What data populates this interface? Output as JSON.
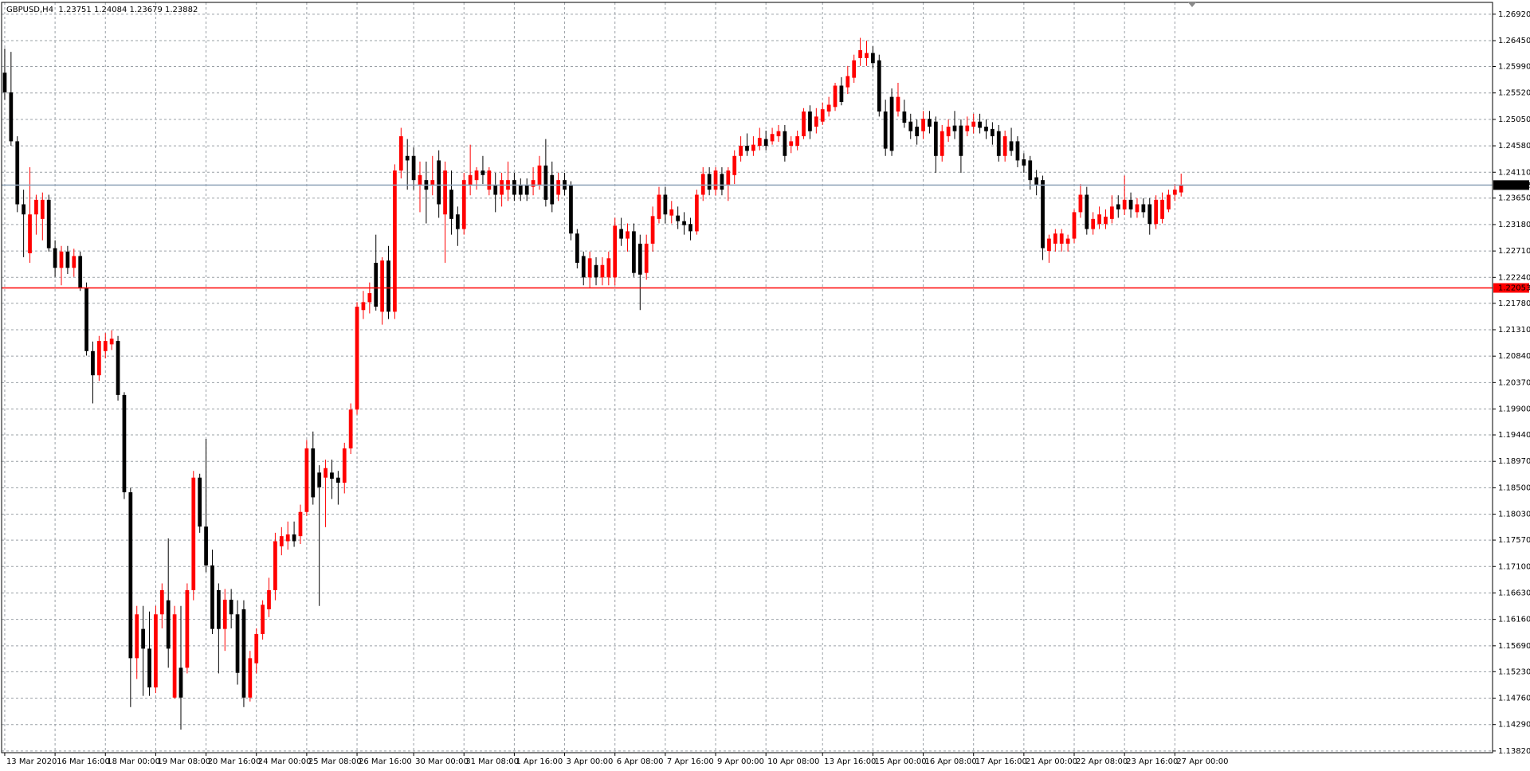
{
  "chart_data": {
    "type": "candlestick",
    "title": "GBPUSD,H4  1.23751 1.24084 1.23679 1.23882",
    "up_color": "#ff0000",
    "down_color": "#000000",
    "grid": true,
    "xlim": [
      -0.5,
      236.5
    ],
    "ylim": [
      1.1379,
      1.2713
    ],
    "xticks": [
      {
        "value": 0,
        "label": "13 Mar 2020"
      },
      {
        "value": 8,
        "label": "16 Mar 16:00"
      },
      {
        "value": 16,
        "label": "18 Mar 00:00"
      },
      {
        "value": 24,
        "label": "19 Mar 08:00"
      },
      {
        "value": 32,
        "label": "20 Mar 16:00"
      },
      {
        "value": 40,
        "label": "24 Mar 00:00"
      },
      {
        "value": 48,
        "label": "25 Mar 08:00"
      },
      {
        "value": 56,
        "label": "26 Mar 16:00"
      },
      {
        "value": 65,
        "label": "30 Mar 00:00"
      },
      {
        "value": 73,
        "label": "31 Mar 08:00"
      },
      {
        "value": 81,
        "label": "1 Apr 16:00"
      },
      {
        "value": 89,
        "label": "3 Apr 00:00"
      },
      {
        "value": 97,
        "label": "6 Apr 08:00"
      },
      {
        "value": 105,
        "label": "7 Apr 16:00"
      },
      {
        "value": 113,
        "label": "9 Apr 00:00"
      },
      {
        "value": 121,
        "label": "10 Apr 08:00"
      },
      {
        "value": 130,
        "label": "13 Apr 16:00"
      },
      {
        "value": 138,
        "label": "15 Apr 00:00"
      },
      {
        "value": 146,
        "label": "16 Apr 08:00"
      },
      {
        "value": 154,
        "label": "17 Apr 16:00"
      },
      {
        "value": 162,
        "label": "21 Apr 00:00"
      },
      {
        "value": 170,
        "label": "22 Apr 08:00"
      },
      {
        "value": 178,
        "label": "23 Apr 16:00"
      },
      {
        "value": 186,
        "label": "27 Apr 00:00"
      }
    ],
    "yticks": [
      {
        "value": 1.2692,
        "label": "1.26920"
      },
      {
        "value": 1.2645,
        "label": "1.26450"
      },
      {
        "value": 1.2599,
        "label": "1.25990"
      },
      {
        "value": 1.2552,
        "label": "1.25520"
      },
      {
        "value": 1.2505,
        "label": "1.25050"
      },
      {
        "value": 1.2458,
        "label": "1.24580"
      },
      {
        "value": 1.2411,
        "label": "1.24110"
      },
      {
        "value": 1.2365,
        "label": "1.23650"
      },
      {
        "value": 1.2318,
        "label": "1.23180"
      },
      {
        "value": 1.2271,
        "label": "1.22710"
      },
      {
        "value": 1.2224,
        "label": "1.22240"
      },
      {
        "value": 1.2178,
        "label": "1.21780"
      },
      {
        "value": 1.2131,
        "label": "1.21310"
      },
      {
        "value": 1.2084,
        "label": "1.20840"
      },
      {
        "value": 1.2037,
        "label": "1.20370"
      },
      {
        "value": 1.199,
        "label": "1.19900"
      },
      {
        "value": 1.1944,
        "label": "1.19440"
      },
      {
        "value": 1.1897,
        "label": "1.18970"
      },
      {
        "value": 1.185,
        "label": "1.18500"
      },
      {
        "value": 1.1803,
        "label": "1.18030"
      },
      {
        "value": 1.1757,
        "label": "1.17570"
      },
      {
        "value": 1.171,
        "label": "1.17100"
      },
      {
        "value": 1.1663,
        "label": "1.16630"
      },
      {
        "value": 1.1616,
        "label": "1.16160"
      },
      {
        "value": 1.1569,
        "label": "1.15690"
      },
      {
        "value": 1.1523,
        "label": "1.15230"
      },
      {
        "value": 1.1476,
        "label": "1.14760"
      },
      {
        "value": 1.1429,
        "label": "1.14290"
      },
      {
        "value": 1.1382,
        "label": "1.13820"
      }
    ],
    "lines": [
      {
        "value": 1.23882,
        "label": "1.23882",
        "color": "#8fa3b8",
        "label_color": "#000000"
      },
      {
        "value": 1.22053,
        "label": "1.22053",
        "color": "#ff0000",
        "label_color": "#ff0000"
      }
    ],
    "ohlc": [
      [
        1.2588,
        1.2631,
        1.254,
        1.2553
      ],
      [
        1.2553,
        1.2625,
        1.2458,
        1.2466
      ],
      [
        1.2466,
        1.2475,
        1.234,
        1.2354
      ],
      [
        1.2354,
        1.238,
        1.226,
        1.2336
      ],
      [
        1.2267,
        1.242,
        1.225,
        1.2336
      ],
      [
        1.2336,
        1.2371,
        1.23,
        1.2362
      ],
      [
        1.2328,
        1.2375,
        1.229,
        1.2362
      ],
      [
        1.2362,
        1.2371,
        1.227,
        1.2276
      ],
      [
        1.2276,
        1.229,
        1.2225,
        1.2241
      ],
      [
        1.2241,
        1.228,
        1.221,
        1.227
      ],
      [
        1.227,
        1.228,
        1.223,
        1.2241
      ],
      [
        1.2241,
        1.2275,
        1.2225,
        1.2262
      ],
      [
        1.2262,
        1.227,
        1.22,
        1.2206
      ],
      [
        1.2206,
        1.2215,
        1.2085,
        1.2093
      ],
      [
        1.2093,
        1.211,
        1.2,
        1.205
      ],
      [
        1.205,
        1.212,
        1.204,
        1.2111
      ],
      [
        1.2093,
        1.2125,
        1.208,
        1.2111
      ],
      [
        1.2105,
        1.213,
        1.2095,
        1.2115
      ],
      [
        1.2111,
        1.212,
        1.2005,
        1.2015
      ],
      [
        1.2015,
        1.202,
        1.183,
        1.1842
      ],
      [
        1.1842,
        1.185,
        1.146,
        1.1547
      ],
      [
        1.1547,
        1.164,
        1.151,
        1.1625
      ],
      [
        1.1599,
        1.164,
        1.148,
        1.1564
      ],
      [
        1.1564,
        1.163,
        1.148,
        1.1495
      ],
      [
        1.1495,
        1.164,
        1.1485,
        1.1625
      ],
      [
        1.1625,
        1.168,
        1.16,
        1.1668
      ],
      [
        1.165,
        1.176,
        1.153,
        1.1564
      ],
      [
        1.1477,
        1.164,
        1.1475,
        1.1625
      ],
      [
        1.153,
        1.164,
        1.142,
        1.1477
      ],
      [
        1.153,
        1.168,
        1.152,
        1.1668
      ],
      [
        1.1668,
        1.188,
        1.165,
        1.1868
      ],
      [
        1.1868,
        1.1875,
        1.177,
        1.1781
      ],
      [
        1.1781,
        1.1937,
        1.17,
        1.1712
      ],
      [
        1.1712,
        1.174,
        1.159,
        1.1599
      ],
      [
        1.1668,
        1.168,
        1.152,
        1.1599
      ],
      [
        1.1599,
        1.167,
        1.156,
        1.1651
      ],
      [
        1.1651,
        1.167,
        1.16,
        1.1625
      ],
      [
        1.1625,
        1.165,
        1.15,
        1.1521
      ],
      [
        1.1634,
        1.165,
        1.146,
        1.1477
      ],
      [
        1.1477,
        1.156,
        1.147,
        1.1547
      ],
      [
        1.1538,
        1.16,
        1.152,
        1.159
      ],
      [
        1.159,
        1.165,
        1.158,
        1.1642
      ],
      [
        1.1634,
        1.169,
        1.162,
        1.1668
      ],
      [
        1.1668,
        1.177,
        1.165,
        1.1755
      ],
      [
        1.1746,
        1.178,
        1.173,
        1.1764
      ],
      [
        1.1755,
        1.179,
        1.174,
        1.1767
      ],
      [
        1.1767,
        1.179,
        1.1745,
        1.1755
      ],
      [
        1.1764,
        1.182,
        1.175,
        1.1807
      ],
      [
        1.1807,
        1.1935,
        1.18,
        1.192
      ],
      [
        1.192,
        1.195,
        1.182,
        1.1833
      ],
      [
        1.1877,
        1.189,
        1.164,
        1.1851
      ],
      [
        1.1868,
        1.19,
        1.178,
        1.1885
      ],
      [
        1.1877,
        1.19,
        1.183,
        1.1866
      ],
      [
        1.1868,
        1.188,
        1.182,
        1.1859
      ],
      [
        1.1859,
        1.193,
        1.184,
        1.192
      ],
      [
        1.192,
        1.2,
        1.191,
        1.1989
      ],
      [
        1.1989,
        1.218,
        1.198,
        1.2172
      ],
      [
        1.2166,
        1.22,
        1.215,
        1.218
      ],
      [
        1.218,
        1.2215,
        1.216,
        1.2196
      ],
      [
        1.225,
        1.23,
        1.2165,
        1.2172
      ],
      [
        1.2163,
        1.226,
        1.214,
        1.2254
      ],
      [
        1.2254,
        1.228,
        1.215,
        1.2163
      ],
      [
        1.2163,
        1.2425,
        1.215,
        1.2414
      ],
      [
        1.2414,
        1.249,
        1.24,
        1.2475
      ],
      [
        1.244,
        1.247,
        1.238,
        1.2432
      ],
      [
        1.244,
        1.2455,
        1.238,
        1.2397
      ],
      [
        1.2388,
        1.243,
        1.234,
        1.2406
      ],
      [
        1.2397,
        1.243,
        1.232,
        1.238
      ],
      [
        1.2388,
        1.244,
        1.237,
        1.2397
      ],
      [
        1.2432,
        1.245,
        1.233,
        1.2354
      ],
      [
        1.2336,
        1.243,
        1.225,
        1.2414
      ],
      [
        1.238,
        1.2414,
        1.23,
        1.2328
      ],
      [
        1.2336,
        1.235,
        1.228,
        1.231
      ],
      [
        1.231,
        1.241,
        1.23,
        1.2397
      ],
      [
        1.2388,
        1.246,
        1.237,
        1.2406
      ],
      [
        1.2397,
        1.242,
        1.238,
        1.2414
      ],
      [
        1.2414,
        1.244,
        1.239,
        1.2406
      ],
      [
        1.238,
        1.242,
        1.237,
        1.2414
      ],
      [
        1.2388,
        1.241,
        1.234,
        1.2371
      ],
      [
        1.2371,
        1.241,
        1.235,
        1.2397
      ],
      [
        1.238,
        1.243,
        1.236,
        1.2397
      ],
      [
        1.2397,
        1.241,
        1.236,
        1.2371
      ],
      [
        1.2388,
        1.24,
        1.236,
        1.2371
      ],
      [
        1.2388,
        1.24,
        1.236,
        1.2371
      ],
      [
        1.2385,
        1.242,
        1.237,
        1.2397
      ],
      [
        1.2388,
        1.244,
        1.238,
        1.2423
      ],
      [
        1.2423,
        1.247,
        1.235,
        1.2362
      ],
      [
        1.2406,
        1.243,
        1.234,
        1.2354
      ],
      [
        1.2371,
        1.241,
        1.236,
        1.2397
      ],
      [
        1.2397,
        1.241,
        1.237,
        1.238
      ],
      [
        1.2388,
        1.2395,
        1.229,
        1.2302
      ],
      [
        1.2302,
        1.231,
        1.224,
        1.225
      ],
      [
        1.2262,
        1.227,
        1.221,
        1.2224
      ],
      [
        1.2224,
        1.227,
        1.2205,
        1.2258
      ],
      [
        1.2246,
        1.226,
        1.221,
        1.2224
      ],
      [
        1.2224,
        1.226,
        1.221,
        1.2246
      ],
      [
        1.2224,
        1.227,
        1.221,
        1.2258
      ],
      [
        1.2224,
        1.233,
        1.221,
        1.2316
      ],
      [
        1.231,
        1.233,
        1.228,
        1.2293
      ],
      [
        1.2293,
        1.232,
        1.227,
        1.2306
      ],
      [
        1.2306,
        1.232,
        1.2225,
        1.2232
      ],
      [
        1.2284,
        1.23,
        1.2166,
        1.2229
      ],
      [
        1.2232,
        1.23,
        1.222,
        1.2284
      ],
      [
        1.2284,
        1.235,
        1.227,
        1.2333
      ],
      [
        1.2328,
        1.2385,
        1.232,
        1.2371
      ],
      [
        1.2371,
        1.2385,
        1.232,
        1.2336
      ],
      [
        1.2334,
        1.236,
        1.232,
        1.2345
      ],
      [
        1.2334,
        1.235,
        1.231,
        1.2324
      ],
      [
        1.2324,
        1.234,
        1.23,
        1.2317
      ],
      [
        1.2319,
        1.233,
        1.229,
        1.2306
      ],
      [
        1.2306,
        1.238,
        1.23,
        1.2371
      ],
      [
        1.2371,
        1.242,
        1.236,
        1.2408
      ],
      [
        1.2408,
        1.242,
        1.237,
        1.238
      ],
      [
        1.238,
        1.242,
        1.237,
        1.2414
      ],
      [
        1.2408,
        1.242,
        1.237,
        1.238
      ],
      [
        1.2388,
        1.242,
        1.236,
        1.2414
      ],
      [
        1.2406,
        1.245,
        1.239,
        1.244
      ],
      [
        1.244,
        1.2475,
        1.243,
        1.2458
      ],
      [
        1.2458,
        1.248,
        1.244,
        1.2449
      ],
      [
        1.2449,
        1.2475,
        1.244,
        1.246
      ],
      [
        1.2458,
        1.249,
        1.245,
        1.2472
      ],
      [
        1.247,
        1.2485,
        1.245,
        1.2458
      ],
      [
        1.2466,
        1.249,
        1.246,
        1.2479
      ],
      [
        1.2475,
        1.2495,
        1.2465,
        1.2484
      ],
      [
        1.2484,
        1.2495,
        1.243,
        1.244
      ],
      [
        1.2458,
        1.2475,
        1.2445,
        1.2466
      ],
      [
        1.2458,
        1.2485,
        1.245,
        1.2475
      ],
      [
        1.2475,
        1.2525,
        1.247,
        1.2519
      ],
      [
        1.2519,
        1.253,
        1.247,
        1.2484
      ],
      [
        1.2492,
        1.2525,
        1.248,
        1.251
      ],
      [
        1.2501,
        1.2535,
        1.2495,
        1.2523
      ],
      [
        1.2519,
        1.2545,
        1.251,
        1.2531
      ],
      [
        1.2527,
        1.257,
        1.252,
        1.2565
      ],
      [
        1.2565,
        1.258,
        1.253,
        1.2536
      ],
      [
        1.2562,
        1.26,
        1.255,
        1.2582
      ],
      [
        1.2579,
        1.262,
        1.257,
        1.261
      ],
      [
        1.2614,
        1.265,
        1.26,
        1.2628
      ],
      [
        1.2614,
        1.2645,
        1.26,
        1.2623
      ],
      [
        1.2623,
        1.2635,
        1.2595,
        1.2605
      ],
      [
        1.261,
        1.262,
        1.251,
        1.2519
      ],
      [
        1.2519,
        1.254,
        1.244,
        1.2453
      ],
      [
        1.2545,
        1.256,
        1.244,
        1.2449
      ],
      [
        1.2519,
        1.257,
        1.251,
        1.2545
      ],
      [
        1.2519,
        1.254,
        1.249,
        1.2499
      ],
      [
        1.2501,
        1.2515,
        1.247,
        1.2484
      ],
      [
        1.2492,
        1.2505,
        1.246,
        1.2475
      ],
      [
        1.2484,
        1.252,
        1.247,
        1.2506
      ],
      [
        1.2506,
        1.252,
        1.248,
        1.2492
      ],
      [
        1.2501,
        1.251,
        1.241,
        1.244
      ],
      [
        1.244,
        1.2495,
        1.243,
        1.2484
      ],
      [
        1.2475,
        1.2505,
        1.2465,
        1.2492
      ],
      [
        1.2494,
        1.252,
        1.247,
        1.2484
      ],
      [
        1.2494,
        1.2505,
        1.241,
        1.244
      ],
      [
        1.2484,
        1.251,
        1.2475,
        1.2494
      ],
      [
        1.2492,
        1.2515,
        1.248,
        1.2501
      ],
      [
        1.2501,
        1.2515,
        1.248,
        1.249
      ],
      [
        1.2492,
        1.2505,
        1.247,
        1.2484
      ],
      [
        1.2488,
        1.25,
        1.246,
        1.2475
      ],
      [
        1.2484,
        1.2495,
        1.243,
        1.244
      ],
      [
        1.244,
        1.2485,
        1.243,
        1.2475
      ],
      [
        1.2466,
        1.249,
        1.244,
        1.2449
      ],
      [
        1.2466,
        1.2475,
        1.242,
        1.2432
      ],
      [
        1.2434,
        1.2445,
        1.241,
        1.2423
      ],
      [
        1.2432,
        1.244,
        1.238,
        1.2397
      ],
      [
        1.2402,
        1.2415,
        1.237,
        1.2388
      ],
      [
        1.2397,
        1.2405,
        1.2255,
        1.2276
      ],
      [
        1.2271,
        1.23,
        1.225,
        1.2293
      ],
      [
        1.2284,
        1.231,
        1.227,
        1.2302
      ],
      [
        1.2284,
        1.231,
        1.227,
        1.2302
      ],
      [
        1.2284,
        1.23,
        1.227,
        1.2293
      ],
      [
        1.2293,
        1.2345,
        1.2285,
        1.234
      ],
      [
        1.234,
        1.239,
        1.233,
        1.2371
      ],
      [
        1.2371,
        1.2385,
        1.23,
        1.231
      ],
      [
        1.231,
        1.234,
        1.23,
        1.2328
      ],
      [
        1.2319,
        1.235,
        1.231,
        1.2336
      ],
      [
        1.2319,
        1.2345,
        1.231,
        1.2332
      ],
      [
        1.2328,
        1.237,
        1.232,
        1.235
      ],
      [
        1.2354,
        1.237,
        1.233,
        1.2345
      ],
      [
        1.2345,
        1.2405,
        1.2335,
        1.2362
      ],
      [
        1.2362,
        1.2375,
        1.233,
        1.2345
      ],
      [
        1.234,
        1.2365,
        1.233,
        1.2354
      ],
      [
        1.2354,
        1.2365,
        1.233,
        1.234
      ],
      [
        1.2354,
        1.2365,
        1.23,
        1.2319
      ],
      [
        1.2319,
        1.237,
        1.231,
        1.2362
      ],
      [
        1.2328,
        1.2375,
        1.232,
        1.2362
      ],
      [
        1.2345,
        1.238,
        1.234,
        1.2371
      ],
      [
        1.2371,
        1.239,
        1.236,
        1.238
      ],
      [
        1.23751,
        1.24084,
        1.23679,
        1.23882
      ]
    ]
  }
}
